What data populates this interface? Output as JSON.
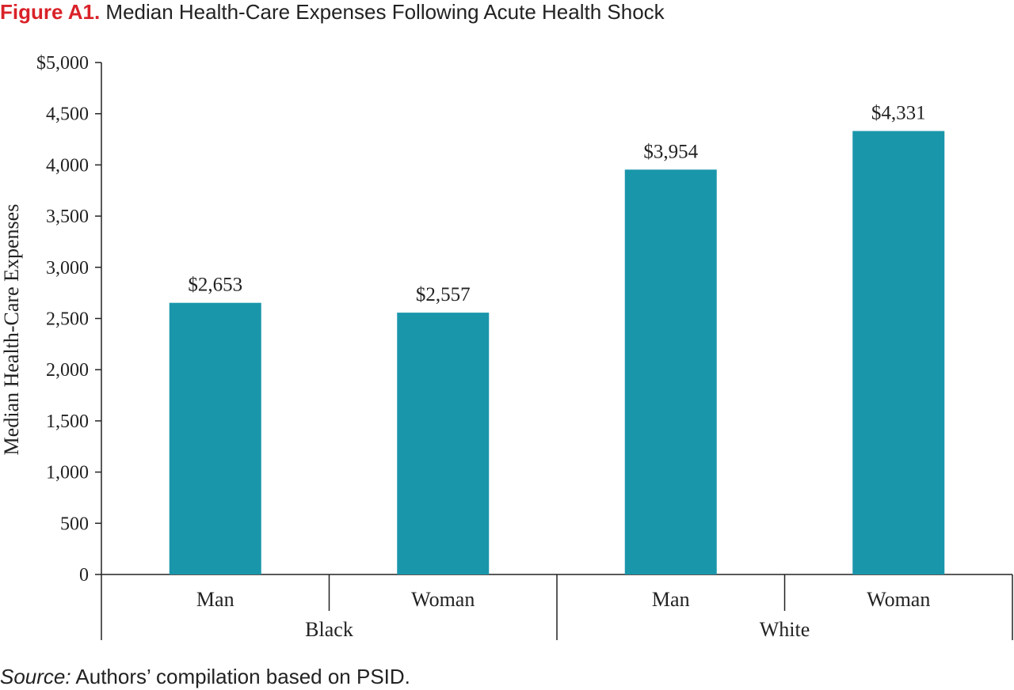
{
  "title": {
    "figure_label": "Figure A1.",
    "text": "Median Health-Care Expenses Following Acute Health Shock"
  },
  "source": {
    "label": "Source:",
    "text": "Authors’ compilation based on PSID."
  },
  "colors": {
    "bar": "#1a96ab",
    "title_accent": "#d92228",
    "axis": "#222222"
  },
  "chart_data": {
    "type": "bar",
    "ylabel": "Median Health-Care Expenses",
    "ylim": [
      0,
      5000
    ],
    "yticks": [
      0,
      500,
      1000,
      1500,
      2000,
      2500,
      3000,
      3500,
      4000,
      4500,
      5000
    ],
    "ytick_labels": [
      "0",
      "500",
      "1,000",
      "1,500",
      "2,000",
      "2,500",
      "3,000",
      "3,500",
      "4,000",
      "4,500",
      "$5,000"
    ],
    "groups": [
      "Black",
      "White"
    ],
    "categories": [
      "Man",
      "Woman",
      "Man",
      "Woman"
    ],
    "category_groups": [
      0,
      0,
      1,
      1
    ],
    "values": [
      2653,
      2557,
      3954,
      4331
    ],
    "data_labels": [
      "$2,653",
      "$2,557",
      "$3,954",
      "$4,331"
    ],
    "grid": false
  }
}
